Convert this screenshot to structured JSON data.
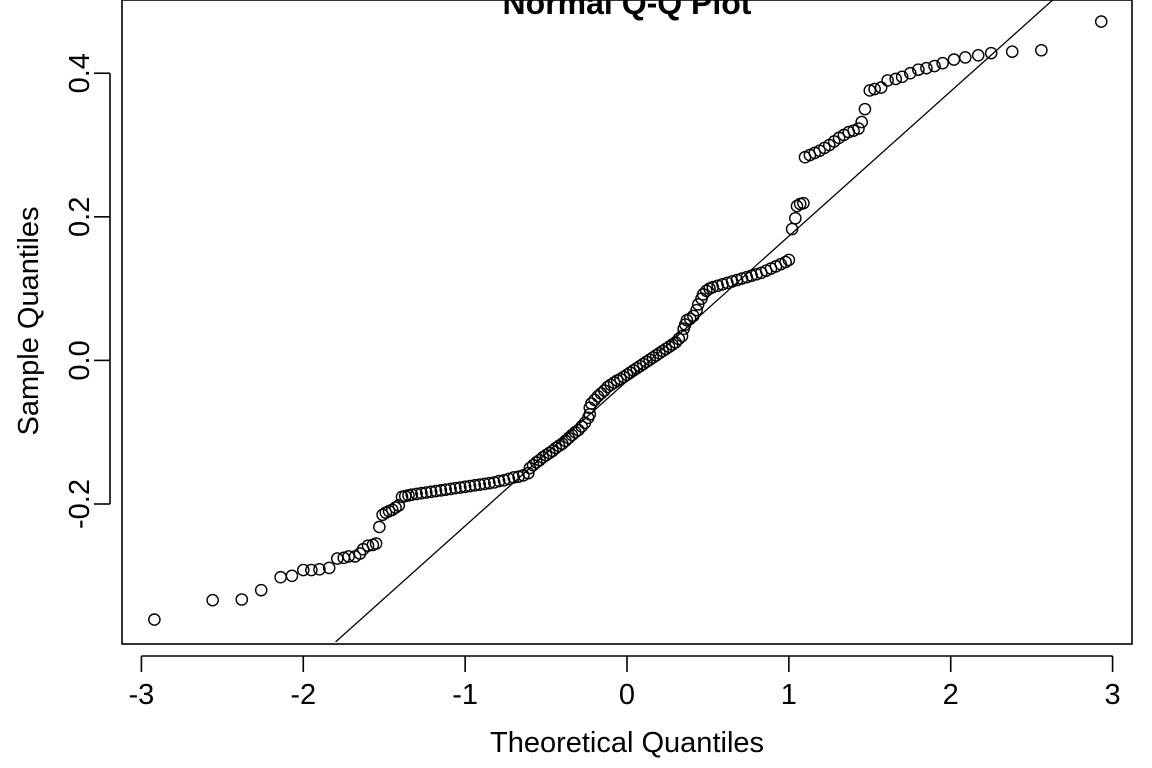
{
  "chart_data": {
    "type": "scatter",
    "title": "Normal Q-Q Plot",
    "xlabel": "Theoretical Quantiles",
    "ylabel": "Sample Quantiles",
    "xlim": [
      -3.12,
      3.12
    ],
    "ylim": [
      -0.395,
      0.502
    ],
    "x_ticks": [
      -3,
      -2,
      -1,
      0,
      1,
      2,
      3
    ],
    "x_tick_labels": [
      "-3",
      "-2",
      "-1",
      "0",
      "1",
      "2",
      "3"
    ],
    "y_ticks": [
      -0.2,
      0.0,
      0.2,
      0.4
    ],
    "y_tick_labels": [
      "-0.2",
      "0.0",
      "0.2",
      "0.4"
    ],
    "grid": false,
    "reference_line": {
      "x1": -1.8,
      "y1": -0.392,
      "x2": 2.63,
      "y2": 0.502
    },
    "series": [
      {
        "points": [
          [
            -2.92,
            -0.361
          ],
          [
            -2.56,
            -0.334
          ],
          [
            -2.38,
            -0.333
          ],
          [
            -2.26,
            -0.32
          ],
          [
            -2.14,
            -0.302
          ],
          [
            -2.07,
            -0.3
          ],
          [
            -2.0,
            -0.292
          ],
          [
            -1.95,
            -0.292
          ],
          [
            -1.9,
            -0.291
          ],
          [
            -1.84,
            -0.289
          ],
          [
            -1.79,
            -0.276
          ],
          [
            -1.75,
            -0.275
          ],
          [
            -1.72,
            -0.273
          ],
          [
            -1.68,
            -0.273
          ],
          [
            -1.65,
            -0.269
          ],
          [
            -1.63,
            -0.263
          ],
          [
            -1.6,
            -0.258
          ],
          [
            -1.57,
            -0.257
          ],
          [
            -1.55,
            -0.255
          ],
          [
            -1.53,
            -0.232
          ],
          [
            -1.51,
            -0.215
          ],
          [
            -1.49,
            -0.212
          ],
          [
            -1.47,
            -0.21
          ],
          [
            -1.45,
            -0.208
          ],
          [
            -1.43,
            -0.205
          ],
          [
            -1.41,
            -0.202
          ],
          [
            -1.39,
            -0.19
          ],
          [
            -1.37,
            -0.189
          ],
          [
            -1.35,
            -0.188
          ],
          [
            -1.33,
            -0.187
          ],
          [
            -1.3,
            -0.186
          ],
          [
            -1.27,
            -0.185
          ],
          [
            -1.24,
            -0.184
          ],
          [
            -1.21,
            -0.183
          ],
          [
            -1.18,
            -0.182
          ],
          [
            -1.15,
            -0.181
          ],
          [
            -1.12,
            -0.18
          ],
          [
            -1.09,
            -0.179
          ],
          [
            -1.06,
            -0.178
          ],
          [
            -1.03,
            -0.177
          ],
          [
            -1.0,
            -0.176
          ],
          [
            -0.97,
            -0.175
          ],
          [
            -0.94,
            -0.174
          ],
          [
            -0.91,
            -0.173
          ],
          [
            -0.88,
            -0.172
          ],
          [
            -0.85,
            -0.171
          ],
          [
            -0.82,
            -0.17
          ],
          [
            -0.79,
            -0.168
          ],
          [
            -0.76,
            -0.167
          ],
          [
            -0.73,
            -0.165
          ],
          [
            -0.7,
            -0.163
          ],
          [
            -0.67,
            -0.162
          ],
          [
            -0.64,
            -0.16
          ],
          [
            -0.61,
            -0.157
          ],
          [
            -0.6,
            -0.15
          ],
          [
            -0.58,
            -0.146
          ],
          [
            -0.56,
            -0.142
          ],
          [
            -0.54,
            -0.139
          ],
          [
            -0.52,
            -0.135
          ],
          [
            -0.5,
            -0.132
          ],
          [
            -0.48,
            -0.129
          ],
          [
            -0.46,
            -0.126
          ],
          [
            -0.44,
            -0.122
          ],
          [
            -0.42,
            -0.119
          ],
          [
            -0.4,
            -0.116
          ],
          [
            -0.38,
            -0.112
          ],
          [
            -0.36,
            -0.108
          ],
          [
            -0.34,
            -0.104
          ],
          [
            -0.32,
            -0.1
          ],
          [
            -0.3,
            -0.097
          ],
          [
            -0.28,
            -0.092
          ],
          [
            -0.26,
            -0.087
          ],
          [
            -0.24,
            -0.08
          ],
          [
            -0.23,
            -0.075
          ],
          [
            -0.23,
            -0.066
          ],
          [
            -0.22,
            -0.06
          ],
          [
            -0.2,
            -0.055
          ],
          [
            -0.18,
            -0.05
          ],
          [
            -0.16,
            -0.046
          ],
          [
            -0.14,
            -0.042
          ],
          [
            -0.12,
            -0.037
          ],
          [
            -0.1,
            -0.034
          ],
          [
            -0.08,
            -0.031
          ],
          [
            -0.06,
            -0.028
          ],
          [
            -0.04,
            -0.026
          ],
          [
            -0.02,
            -0.023
          ],
          [
            0.0,
            -0.02
          ],
          [
            0.02,
            -0.017
          ],
          [
            0.04,
            -0.014
          ],
          [
            0.06,
            -0.011
          ],
          [
            0.08,
            -0.008
          ],
          [
            0.1,
            -0.005
          ],
          [
            0.12,
            -0.002
          ],
          [
            0.14,
            0.001
          ],
          [
            0.16,
            0.004
          ],
          [
            0.18,
            0.007
          ],
          [
            0.2,
            0.01
          ],
          [
            0.22,
            0.013
          ],
          [
            0.24,
            0.016
          ],
          [
            0.26,
            0.019
          ],
          [
            0.28,
            0.022
          ],
          [
            0.3,
            0.025
          ],
          [
            0.32,
            0.03
          ],
          [
            0.34,
            0.034
          ],
          [
            0.35,
            0.044
          ],
          [
            0.36,
            0.05
          ],
          [
            0.37,
            0.056
          ],
          [
            0.39,
            0.058
          ],
          [
            0.41,
            0.062
          ],
          [
            0.43,
            0.07
          ],
          [
            0.44,
            0.078
          ],
          [
            0.46,
            0.086
          ],
          [
            0.47,
            0.092
          ],
          [
            0.49,
            0.097
          ],
          [
            0.51,
            0.1
          ],
          [
            0.53,
            0.102
          ],
          [
            0.56,
            0.104
          ],
          [
            0.59,
            0.106
          ],
          [
            0.62,
            0.108
          ],
          [
            0.65,
            0.11
          ],
          [
            0.68,
            0.112
          ],
          [
            0.71,
            0.114
          ],
          [
            0.74,
            0.116
          ],
          [
            0.77,
            0.118
          ],
          [
            0.8,
            0.12
          ],
          [
            0.83,
            0.122
          ],
          [
            0.86,
            0.125
          ],
          [
            0.89,
            0.128
          ],
          [
            0.92,
            0.131
          ],
          [
            0.95,
            0.134
          ],
          [
            0.98,
            0.137
          ],
          [
            1.0,
            0.14
          ],
          [
            1.02,
            0.183
          ],
          [
            1.04,
            0.198
          ],
          [
            1.05,
            0.215
          ],
          [
            1.07,
            0.218
          ],
          [
            1.09,
            0.219
          ],
          [
            1.1,
            0.283
          ],
          [
            1.13,
            0.286
          ],
          [
            1.16,
            0.289
          ],
          [
            1.19,
            0.292
          ],
          [
            1.22,
            0.296
          ],
          [
            1.25,
            0.3
          ],
          [
            1.28,
            0.305
          ],
          [
            1.31,
            0.31
          ],
          [
            1.34,
            0.314
          ],
          [
            1.37,
            0.318
          ],
          [
            1.4,
            0.32
          ],
          [
            1.43,
            0.323
          ],
          [
            1.45,
            0.332
          ],
          [
            1.47,
            0.35
          ],
          [
            1.5,
            0.376
          ],
          [
            1.53,
            0.378
          ],
          [
            1.57,
            0.38
          ],
          [
            1.61,
            0.39
          ],
          [
            1.66,
            0.392
          ],
          [
            1.7,
            0.395
          ],
          [
            1.75,
            0.4
          ],
          [
            1.8,
            0.405
          ],
          [
            1.85,
            0.407
          ],
          [
            1.9,
            0.41
          ],
          [
            1.95,
            0.414
          ],
          [
            2.02,
            0.419
          ],
          [
            2.09,
            0.422
          ],
          [
            2.17,
            0.425
          ],
          [
            2.25,
            0.428
          ],
          [
            2.38,
            0.43
          ],
          [
            2.56,
            0.432
          ],
          [
            2.93,
            0.472
          ]
        ]
      }
    ]
  },
  "colors": {
    "point_stroke": "#000000",
    "line": "#000000",
    "axis": "#000000",
    "background": "#ffffff"
  }
}
